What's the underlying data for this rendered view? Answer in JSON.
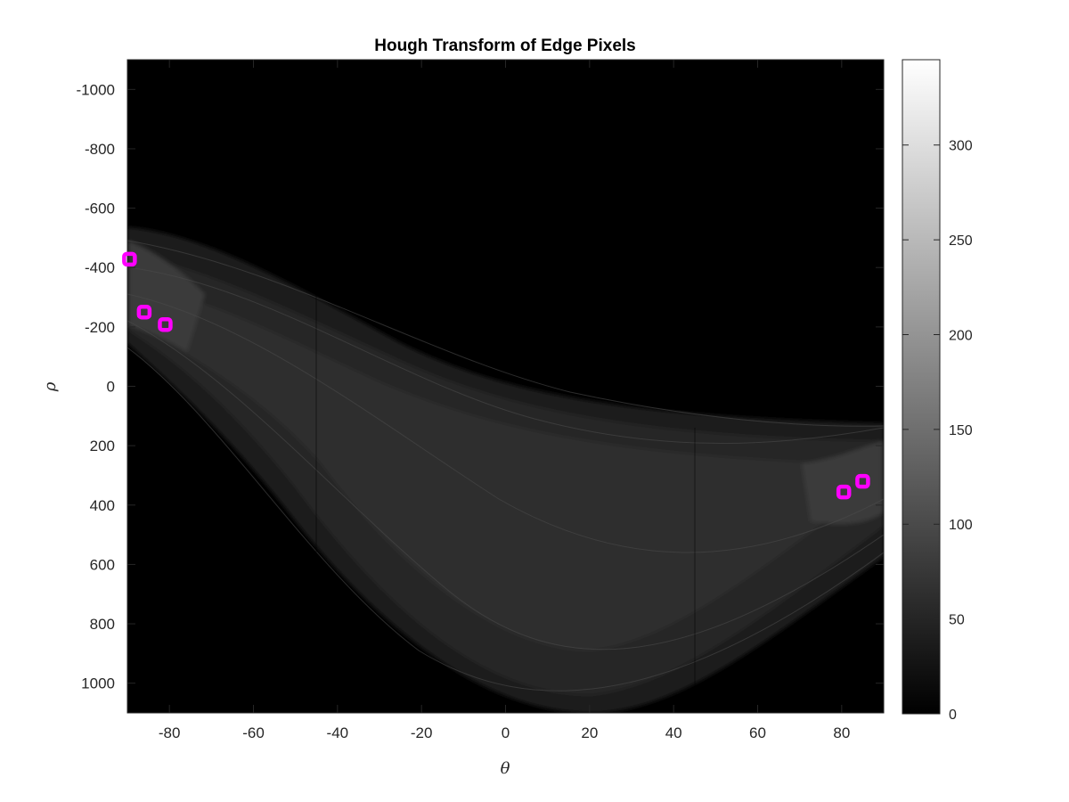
{
  "chart_data": {
    "type": "heatmap",
    "title": "Hough Transform of Edge Pixels",
    "xlabel": "θ",
    "ylabel": "ρ",
    "xlim": [
      -90,
      90
    ],
    "ylim": [
      -1100,
      1100
    ],
    "y_reversed": true,
    "xticks": [
      -80,
      -60,
      -40,
      -20,
      0,
      20,
      40,
      60,
      80
    ],
    "yticks": [
      -1000,
      -800,
      -600,
      -400,
      -200,
      0,
      200,
      400,
      600,
      800,
      1000
    ],
    "colormap": "gray",
    "colorbar": {
      "range": [
        0,
        345
      ],
      "ticks": [
        0,
        50,
        100,
        150,
        200,
        250,
        300
      ]
    },
    "peaks": {
      "color": "#ff00ff",
      "marker": "square",
      "points": [
        {
          "theta": -89.5,
          "rho": -428
        },
        {
          "theta": -86,
          "rho": -250
        },
        {
          "theta": -81,
          "rho": -208
        },
        {
          "theta": 80.5,
          "rho": 356
        },
        {
          "theta": 85,
          "rho": 320
        }
      ]
    }
  }
}
